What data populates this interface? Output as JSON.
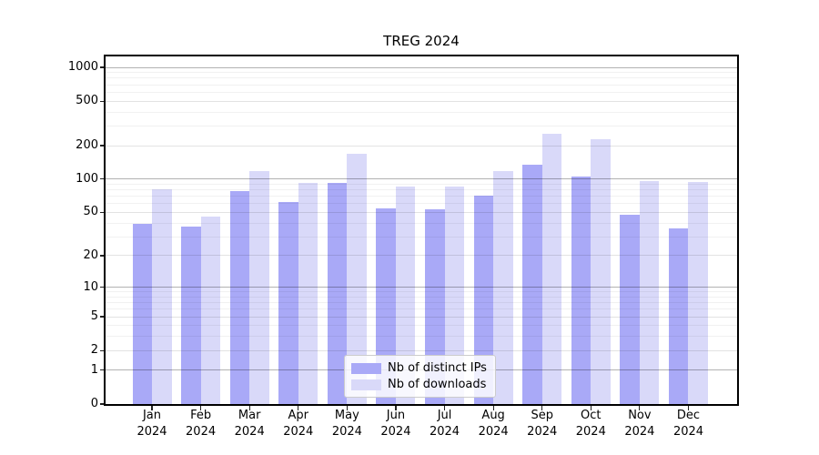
{
  "chart_data": {
    "type": "bar",
    "title": "TREG 2024",
    "categories": [
      "Jan",
      "Feb",
      "Mar",
      "Apr",
      "May",
      "Jun",
      "Jul",
      "Aug",
      "Sep",
      "Oct",
      "Nov",
      "Dec"
    ],
    "category_year": "2024",
    "series": [
      {
        "name": "Nb of distinct IPs",
        "slug": "distinct-ips",
        "color": "#a9a9f7",
        "values": [
          39,
          37,
          78,
          62,
          93,
          54,
          53,
          71,
          136,
          106,
          48,
          36
        ]
      },
      {
        "name": "Nb of downloads",
        "slug": "downloads",
        "color": "#d9d9f9",
        "values": [
          81,
          46,
          118,
          92,
          170,
          85,
          85,
          118,
          255,
          228,
          96,
          95
        ]
      }
    ],
    "yscale": "log1p",
    "ylim": [
      0,
      1300
    ],
    "yticks": [
      0,
      1,
      2,
      5,
      10,
      20,
      50,
      100,
      200,
      500,
      1000
    ],
    "grid": {
      "major": [
        1,
        10,
        100,
        1000
      ],
      "major_color": "rgba(0,0,0,0.30)",
      "minor_strong": [
        2,
        5,
        20,
        50,
        200,
        500
      ],
      "minor_strong_color": "rgba(0,0,0,0.11)",
      "minor_faint": [
        3,
        4,
        6,
        7,
        8,
        9,
        30,
        40,
        60,
        70,
        80,
        90,
        300,
        400,
        600,
        700,
        800,
        900
      ],
      "minor_faint_color": "rgba(0,0,0,0.055)"
    },
    "legend_position": "lower-center",
    "background_color": "#ffffff",
    "spine_color": "#000000"
  }
}
